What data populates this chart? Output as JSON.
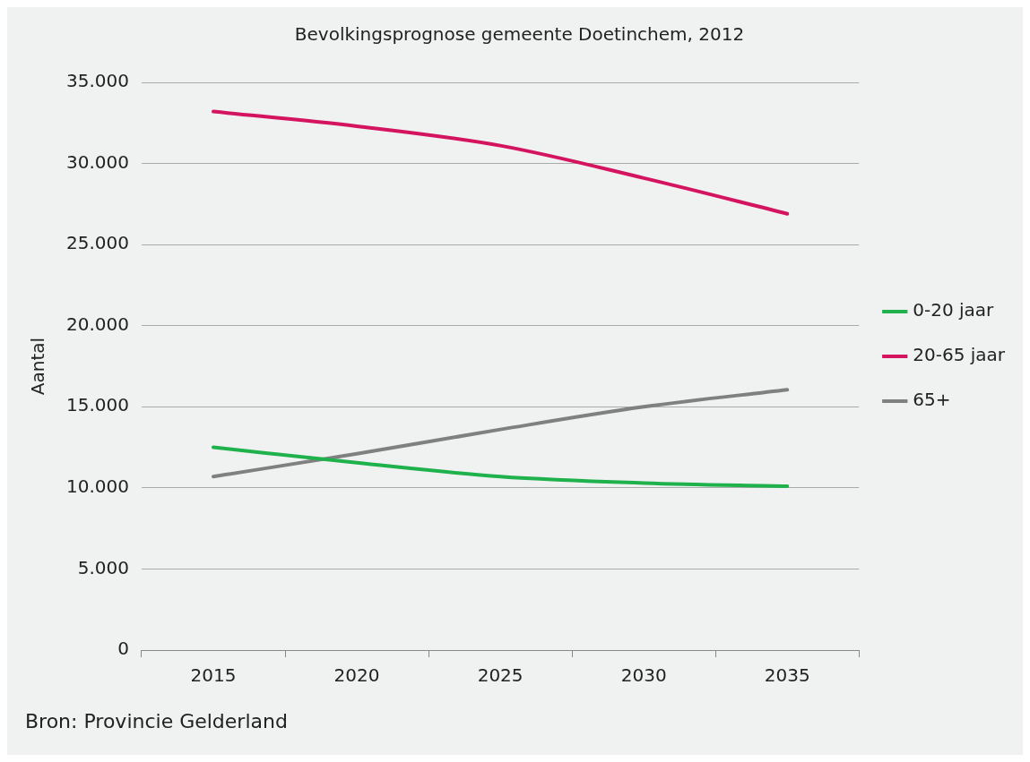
{
  "chart_data": {
    "type": "line",
    "title": "Bevolkingsprognose gemeente Doetinchem, 2012",
    "ylabel": "Aantal",
    "categories": [
      "2015",
      "2020",
      "2025",
      "2030",
      "2035"
    ],
    "series": [
      {
        "name": "0-20 jaar",
        "color": "#1fb14b",
        "values": [
          12500,
          11550,
          10700,
          10300,
          10100
        ]
      },
      {
        "name": "20-65 jaar",
        "color": "#d4145f",
        "values": [
          33200,
          32300,
          31100,
          29100,
          26900
        ]
      },
      {
        "name": "65+",
        "color": "#808080",
        "values": [
          10700,
          12100,
          13600,
          15000,
          16050
        ]
      }
    ],
    "ylim": [
      0,
      35000
    ],
    "yticks": [
      0,
      {
        "value": 5000,
        "label": "5.000"
      },
      {
        "value": 10000,
        "label": "10.000"
      },
      {
        "value": 15000,
        "label": "15.000"
      },
      {
        "value": 20000,
        "label": "20.000"
      },
      {
        "value": 25000,
        "label": "25.000"
      },
      {
        "value": 30000,
        "label": "30.000"
      },
      {
        "value": 35000,
        "label": "35.000"
      }
    ],
    "grid": "y",
    "legend": "right",
    "marker": "none",
    "line_style": "solid",
    "annotations": [
      "Bron: Provincie Gelderland"
    ]
  }
}
